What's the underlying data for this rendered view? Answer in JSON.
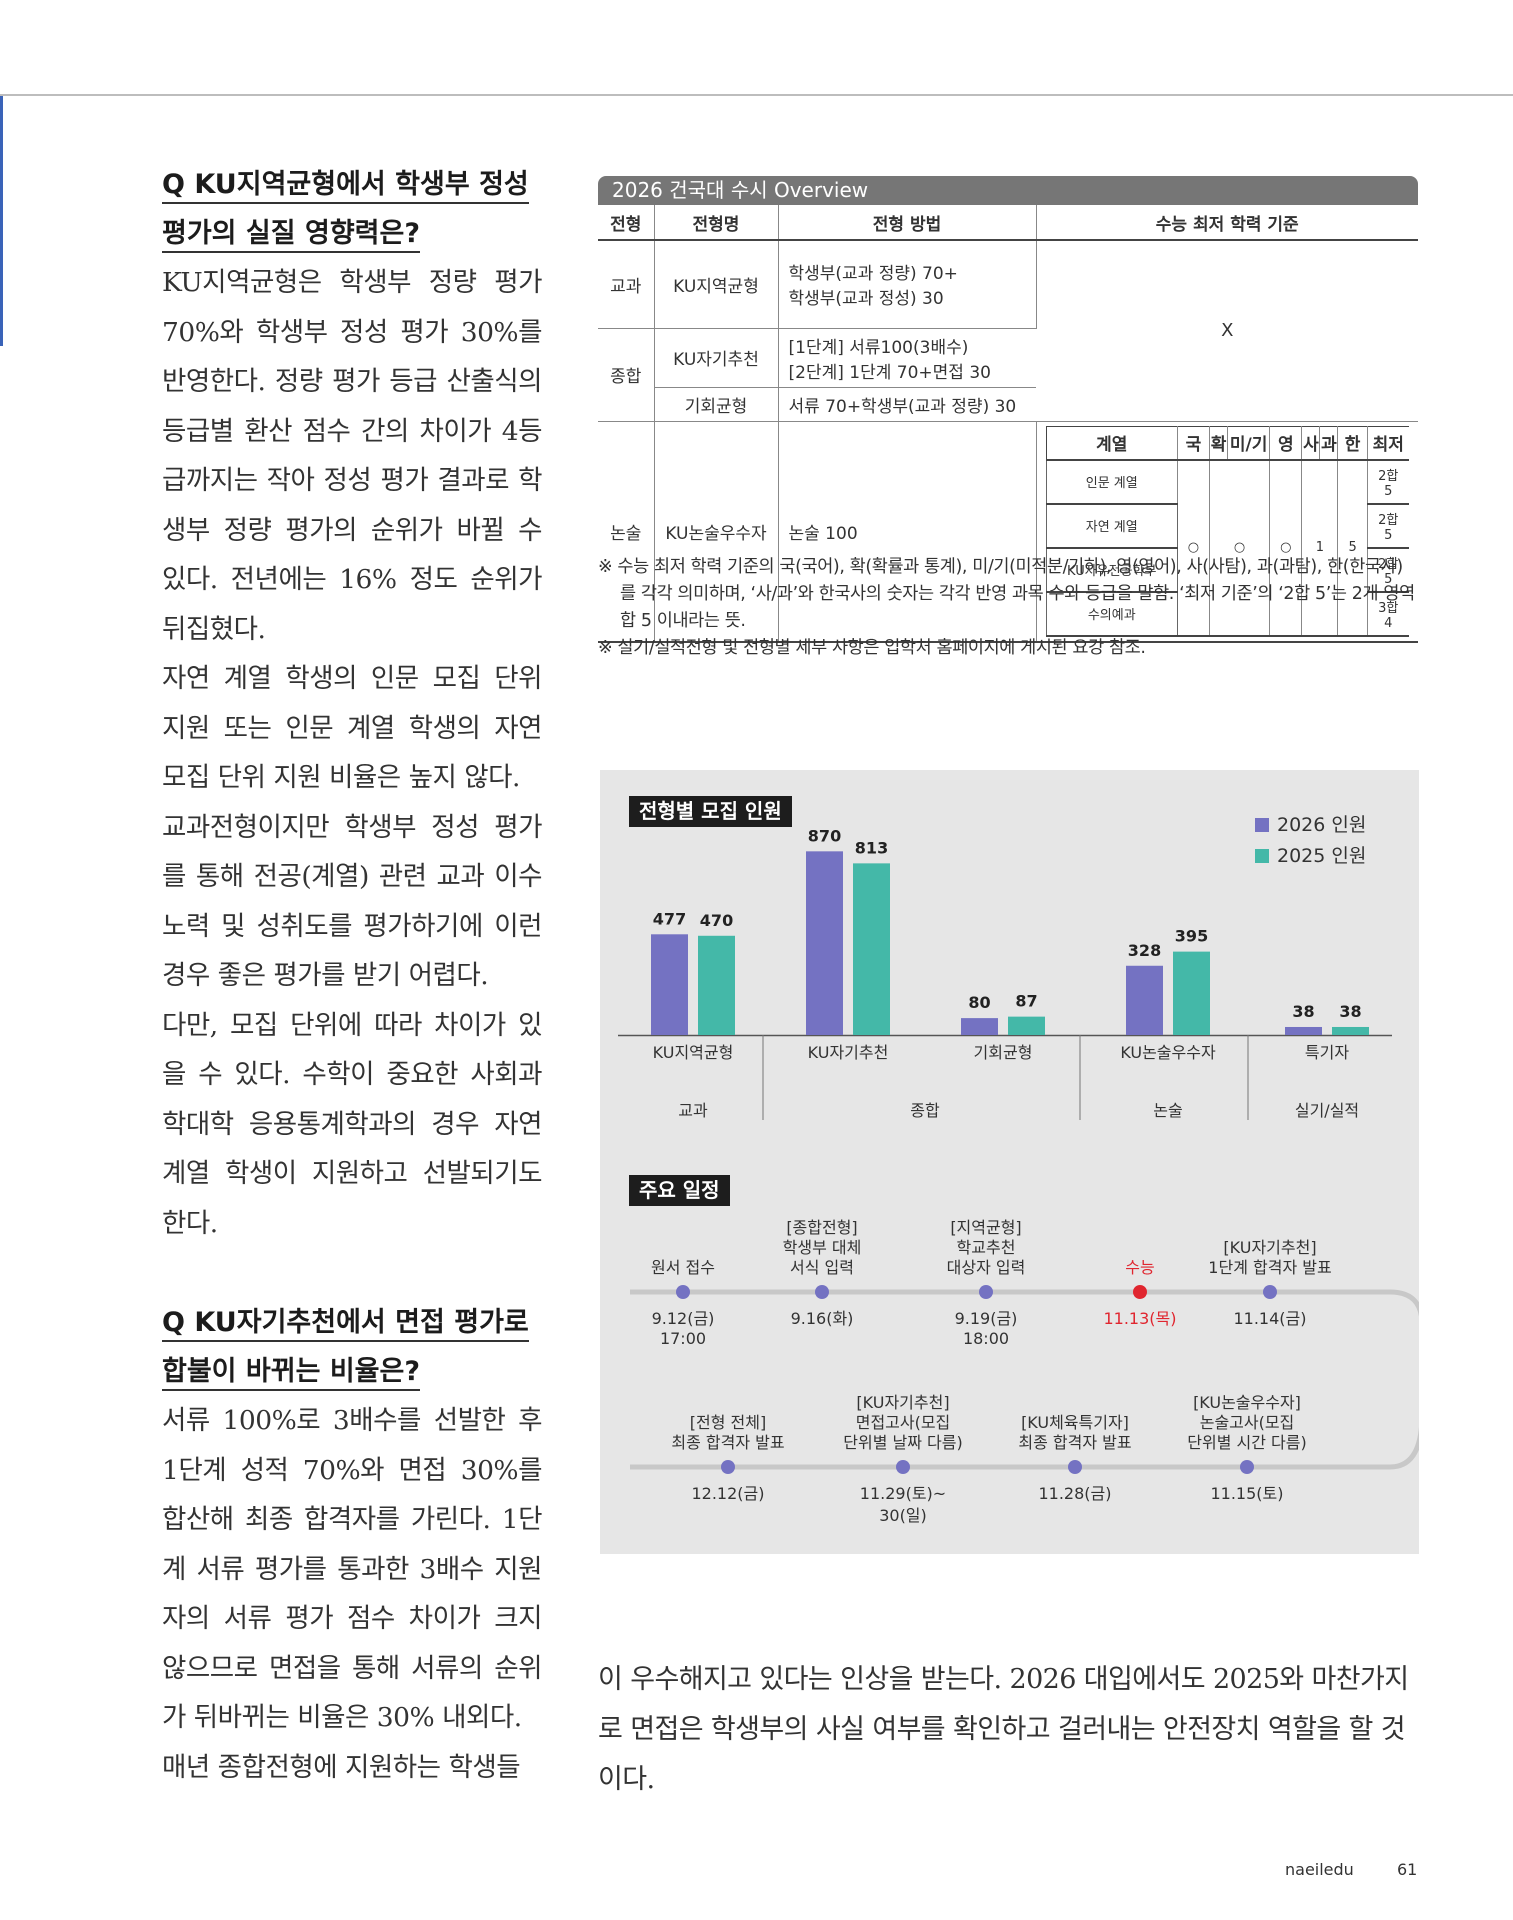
{
  "left": {
    "q1": [
      "Q KU지역균형에서 학생부 정성",
      "평가의 실질 영향력은?"
    ],
    "a1": "KU지역균형은 학생부 정량 평가 70%와 학생부 정성 평가 30%를 반영한다. 정량 평가 등급 산출식의 등급별 환산 점수 간의 차이가 4등급까지는 작아 정성 평가 결과로 학생부 정량 평가의 순위가 바뀔 수 있다. 전년에는 16% 정도 순위가 뒤집혔다.",
    "a2": "자연 계열 학생의 인문 모집 단위 지원 또는 인문 계열 학생의 자연 모집 단위 지원 비율은 높지 않다.",
    "a3": "교과전형이지만 학생부 정성 평가를 통해 전공(계열) 관련 교과 이수 노력 및 성취도를 평가하기에 이런 경우 좋은 평가를 받기 어렵다.",
    "a4": "다만, 모집 단위에 따라 차이가 있을 수 있다. 수학이 중요한 사회과학대학 응용통계학과의 경우 자연 계열 학생이 지원하고 선발되기도 한다.",
    "q2": [
      "Q KU자기추천에서 면접 평가로",
      "합불이 바뀌는 비율은?"
    ],
    "b1": "서류 100%로 3배수를 선발한 후 1단계 성적 70%와 면접 30%를 합산해 최종 합격자를 가린다. 1단계 서류 평가를 통과한 3배수 지원자의 서류 평가 점수 차이가 크지 않으므로 면접을 통해 서류의 순위가 뒤바뀌는 비율은 30% 내외다.",
    "b2": "매년 종합전형에 지원하는 학생들"
  },
  "bottom_text": "이 우수해지고 있다는 인상을 받는다. 2026 대입에서도 2025와 마찬가지로 면접은 학생부의 사실 여부를 확인하고 걸러내는 안전장치 역할을 할 것이다.",
  "overview": {
    "title": "2026 건국대 수시 Overview",
    "headers": [
      "전형",
      "전형명",
      "전형 방법",
      "수능 최저 학력 기준"
    ],
    "rows": {
      "gyogwa": {
        "type": "교과",
        "name": "KU지역균형",
        "method": [
          "학생부(교과 정량) 70+",
          "학생부(교과 정성) 30"
        ]
      },
      "jonghap": {
        "type": "종합",
        "name1": "KU자기추천",
        "method1": [
          "[1단계] 서류100(3배수)",
          "[2단계] 1단계 70+면접 30"
        ],
        "name2": "기회균형",
        "method2": "서류 70+학생부(교과 정량) 30"
      },
      "nonsul": {
        "type": "논술",
        "name": "KU논술우수자",
        "method": "논술 100"
      },
      "none_mark": "X"
    },
    "mini": {
      "headers": [
        "계열",
        "국",
        "확",
        "미/기",
        "영",
        "사",
        "과",
        "한",
        "최저"
      ],
      "groups": [
        "인문 계열",
        "자연 계열",
        "KU자유전공학부",
        "수의예과"
      ],
      "marks": [
        "○",
        "○",
        "○",
        "1",
        "5"
      ],
      "mins": [
        "2합 5",
        "2합 5",
        "2합 5",
        "3합 4"
      ]
    }
  },
  "notes": [
    "※ 수능 최저 학력 기준의 국(국어), 확(확률과 통계), 미/기(미적분/기하), 영(영어), 사(사탐), 과(과탐), 한(한국사)를 각각 의미하며, ‘사/과’와 한국사의 숫자는 각각 반영 과목 수와 등급을 말함. ‘최저 기준’의 ‘2합 5’는 2개 영역 합 5 이내라는 뜻.",
    "※ 실기/실적전형 및 전형별 세부 사항은 입학처 홈페이지에 게시된 요강 참조."
  ],
  "chart_data": {
    "type": "bar",
    "title": "전형별 모집 인원",
    "categories": [
      "KU지역균형",
      "KU자기추천",
      "기회균형",
      "KU논술우수자",
      "특기자"
    ],
    "groups": [
      {
        "label": "교과",
        "categories": [
          "KU지역균형"
        ]
      },
      {
        "label": "종합",
        "categories": [
          "KU자기추천",
          "기회균형"
        ]
      },
      {
        "label": "논술",
        "categories": [
          "KU논술우수자"
        ]
      },
      {
        "label": "실기/실적",
        "categories": [
          "특기자"
        ]
      }
    ],
    "series": [
      {
        "name": "2026 인원",
        "color": "#7472c2",
        "values": [
          477,
          870,
          80,
          328,
          38
        ]
      },
      {
        "name": "2025 인원",
        "color": "#44b8a8",
        "values": [
          470,
          813,
          87,
          395,
          38
        ]
      }
    ],
    "ylim": [
      0,
      900
    ],
    "legend": "top-right"
  },
  "schedule": {
    "title": "주요 일정",
    "row1": [
      {
        "label": [
          "원서 접수"
        ],
        "date": [
          "9.12(금)",
          "17:00"
        ],
        "red": false
      },
      {
        "label": [
          "[종합전형]",
          "학생부 대체",
          "서식 입력"
        ],
        "date": [
          "9.16(화)"
        ],
        "red": false
      },
      {
        "label": [
          "[지역균형]",
          "학교추천",
          "대상자 입력"
        ],
        "date": [
          "9.19(금)",
          "18:00"
        ],
        "red": false
      },
      {
        "label": [
          "수능"
        ],
        "date": [
          "11.13(목)"
        ],
        "red": true
      },
      {
        "label": [
          "[KU자기추천]",
          "1단계 합격자 발표"
        ],
        "date": [
          "11.14(금)"
        ],
        "red": false
      }
    ],
    "row2": [
      {
        "label": [
          "[전형 전체]",
          "최종 합격자 발표"
        ],
        "date": [
          "12.12(금)"
        ]
      },
      {
        "label": [
          "[KU자기추천]",
          "면접고사(모집",
          "단위별 날짜 다름)"
        ],
        "date": [
          "11.29(토)~",
          "30(일)"
        ]
      },
      {
        "label": [
          "[KU체육특기자]",
          "최종 합격자 발표"
        ],
        "date": [
          "11.28(금)"
        ]
      },
      {
        "label": [
          "[KU논술우수자]",
          "논술고사(모집",
          "단위별 시간 다름)"
        ],
        "date": [
          "11.15(토)"
        ]
      }
    ],
    "colors": {
      "dot": "#7472c2",
      "red": "#e0262f",
      "line": "#c8c8c8"
    }
  },
  "footer": {
    "brand": "naeiledu",
    "page": "61"
  }
}
